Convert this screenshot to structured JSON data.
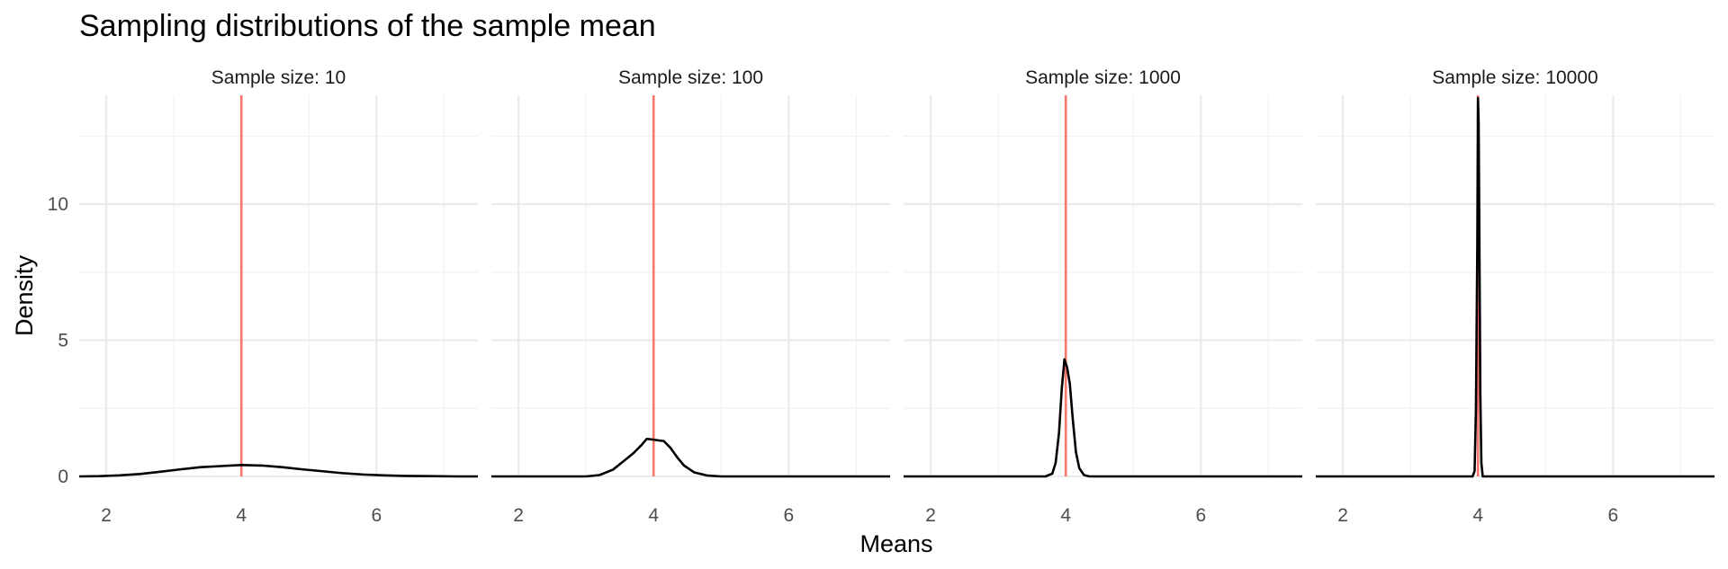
{
  "chart_data": {
    "type": "line",
    "title": "Sampling distributions of the sample mean",
    "xlabel": "Means",
    "ylabel": "Density",
    "xlim": [
      1.6,
      7.5
    ],
    "ylim": [
      0,
      14
    ],
    "x_ticks": [
      2,
      4,
      6
    ],
    "y_ticks": [
      0,
      5,
      10
    ],
    "grid": true,
    "reference_line": {
      "x": 4,
      "color": "#f8766d"
    },
    "curve_color": "#000000",
    "panels": [
      {
        "label": "Sample size: 10",
        "curve": [
          [
            1.6,
            0.0
          ],
          [
            1.9,
            0.01
          ],
          [
            2.2,
            0.04
          ],
          [
            2.5,
            0.09
          ],
          [
            2.8,
            0.17
          ],
          [
            3.1,
            0.26
          ],
          [
            3.4,
            0.34
          ],
          [
            3.7,
            0.38
          ],
          [
            4.0,
            0.42
          ],
          [
            4.3,
            0.4
          ],
          [
            4.6,
            0.34
          ],
          [
            4.9,
            0.26
          ],
          [
            5.2,
            0.19
          ],
          [
            5.5,
            0.12
          ],
          [
            5.8,
            0.07
          ],
          [
            6.1,
            0.04
          ],
          [
            6.4,
            0.02
          ],
          [
            6.8,
            0.01
          ],
          [
            7.2,
            0.0
          ],
          [
            7.5,
            0.0
          ]
        ]
      },
      {
        "label": "Sample size: 100",
        "curve": [
          [
            1.6,
            0.0
          ],
          [
            3.0,
            0.0
          ],
          [
            3.2,
            0.05
          ],
          [
            3.4,
            0.25
          ],
          [
            3.55,
            0.55
          ],
          [
            3.7,
            0.85
          ],
          [
            3.82,
            1.15
          ],
          [
            3.9,
            1.38
          ],
          [
            4.0,
            1.35
          ],
          [
            4.08,
            1.32
          ],
          [
            4.15,
            1.3
          ],
          [
            4.25,
            1.05
          ],
          [
            4.35,
            0.7
          ],
          [
            4.45,
            0.4
          ],
          [
            4.6,
            0.15
          ],
          [
            4.8,
            0.03
          ],
          [
            5.0,
            0.0
          ],
          [
            7.5,
            0.0
          ]
        ]
      },
      {
        "label": "Sample size: 1000",
        "curve": [
          [
            1.6,
            0.0
          ],
          [
            3.7,
            0.0
          ],
          [
            3.8,
            0.1
          ],
          [
            3.85,
            0.5
          ],
          [
            3.9,
            1.6
          ],
          [
            3.94,
            3.2
          ],
          [
            3.98,
            4.3
          ],
          [
            4.02,
            4.0
          ],
          [
            4.06,
            3.4
          ],
          [
            4.1,
            2.2
          ],
          [
            4.15,
            0.9
          ],
          [
            4.2,
            0.3
          ],
          [
            4.27,
            0.05
          ],
          [
            4.35,
            0.0
          ],
          [
            7.5,
            0.0
          ]
        ]
      },
      {
        "label": "Sample size: 10000",
        "curve": [
          [
            1.6,
            0.0
          ],
          [
            3.92,
            0.0
          ],
          [
            3.95,
            0.2
          ],
          [
            3.97,
            2.5
          ],
          [
            3.99,
            8.5
          ],
          [
            4.0,
            13.9
          ],
          [
            4.01,
            13.0
          ],
          [
            4.02,
            9.0
          ],
          [
            4.035,
            3.0
          ],
          [
            4.05,
            0.5
          ],
          [
            4.07,
            0.0
          ],
          [
            7.5,
            0.0
          ]
        ]
      }
    ]
  }
}
